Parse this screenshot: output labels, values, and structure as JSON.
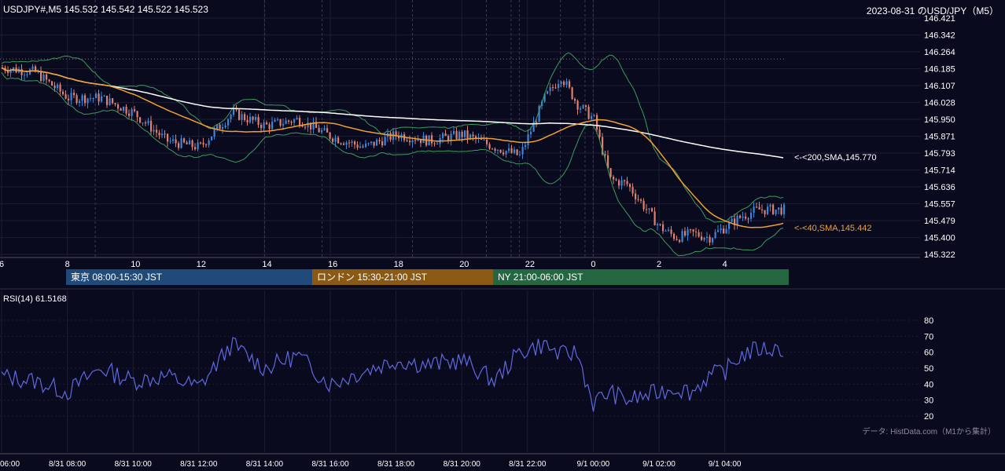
{
  "header": {
    "symbol_info": "USDJPY#,M5 145.532 145.542 145.522 145.523",
    "title": "2023-08-31 のUSD/JPY（M5）"
  },
  "sessions": [
    {
      "label": "東京 08:00-15:30 JST",
      "color": "#1f4a7a"
    },
    {
      "label": "ロンドン 15:30-21:00 JST",
      "color": "#8a5a14"
    },
    {
      "label": "NY 21:00-06:00 JST",
      "color": "#236640"
    }
  ],
  "indicators": {
    "sma200_label": "<-<200,SMA,145.770",
    "sma40_label": "<-<40,SMA,145.442",
    "rsi_label": "RSI(14) 61.5168"
  },
  "footer": {
    "source": "データ: HistData.com（M1から集計）"
  },
  "colors": {
    "background": "#0a0a1e",
    "bull": "#3a86d8",
    "bear": "#e0806e",
    "sma40": "#f0a030",
    "sma200": "#ffffff",
    "bollinger": "#3c9a5c",
    "rsi": "#6068e0"
  },
  "chart_data": [
    {
      "type": "candlestick",
      "title": "USDJPY#,M5",
      "x_ticks": [
        "6",
        "8",
        "10",
        "12",
        "14",
        "16",
        "18",
        "20",
        "22",
        "0",
        "2",
        "4"
      ],
      "y_ticks": [
        "146.421",
        "146.342",
        "146.264",
        "146.185",
        "146.107",
        "146.028",
        "145.950",
        "145.871",
        "145.793",
        "145.714",
        "145.636",
        "145.557",
        "145.479",
        "145.400",
        "145.322"
      ],
      "ylim": [
        145.322,
        146.421
      ],
      "grid": true,
      "series": [
        {
          "name": "200,SMA",
          "last": 145.77
        },
        {
          "name": "40,SMA",
          "last": 145.442
        }
      ],
      "approx_price_path": {
        "hours": [
          6,
          7,
          8,
          9,
          10,
          11,
          12,
          13,
          14,
          15,
          16,
          17,
          18,
          19,
          20,
          21,
          21.75,
          22.5,
          23,
          23.5,
          24,
          24.5,
          25,
          25.5,
          26,
          26.5,
          27,
          27.5,
          28,
          28.5,
          29
        ],
        "prices": [
          146.19,
          146.17,
          146.05,
          146.05,
          145.98,
          145.85,
          145.82,
          145.98,
          145.92,
          145.95,
          145.87,
          145.82,
          145.88,
          145.85,
          145.88,
          145.82,
          145.78,
          146.05,
          146.15,
          146.02,
          145.95,
          145.67,
          145.65,
          145.55,
          145.45,
          145.4,
          145.42,
          145.4,
          145.45,
          145.5,
          145.53
        ]
      }
    },
    {
      "type": "line",
      "title": "RSI(14)",
      "y_ticks": [
        "80",
        "70",
        "60",
        "50",
        "40",
        "30",
        "20"
      ],
      "ylim": [
        20,
        80
      ],
      "grid": true,
      "series": [
        {
          "name": "RSI(14)",
          "last": 61.5168
        }
      ],
      "approx_rsi_path": {
        "hours": [
          6,
          7,
          8,
          9,
          10,
          11,
          12,
          13,
          14,
          15,
          16,
          17,
          18,
          19,
          20,
          21,
          21.75,
          22.5,
          23,
          23.5,
          24,
          24.5,
          25,
          25.5,
          26,
          26.5,
          27,
          27.5,
          28,
          28.5,
          29
        ],
        "values": [
          45,
          42,
          35,
          50,
          42,
          45,
          38,
          65,
          50,
          58,
          40,
          48,
          55,
          52,
          55,
          42,
          60,
          65,
          58,
          60,
          28,
          35,
          30,
          32,
          35,
          38,
          35,
          45,
          48,
          58,
          62
        ]
      },
      "x_ticks": [
        "06:00",
        "8/31 08:00",
        "8/31 10:00",
        "8/31 12:00",
        "8/31 14:00",
        "8/31 16:00",
        "8/31 18:00",
        "8/31 20:00",
        "8/31 22:00",
        "9/1 00:00",
        "9/1 02:00",
        "9/1 04:00"
      ]
    }
  ]
}
